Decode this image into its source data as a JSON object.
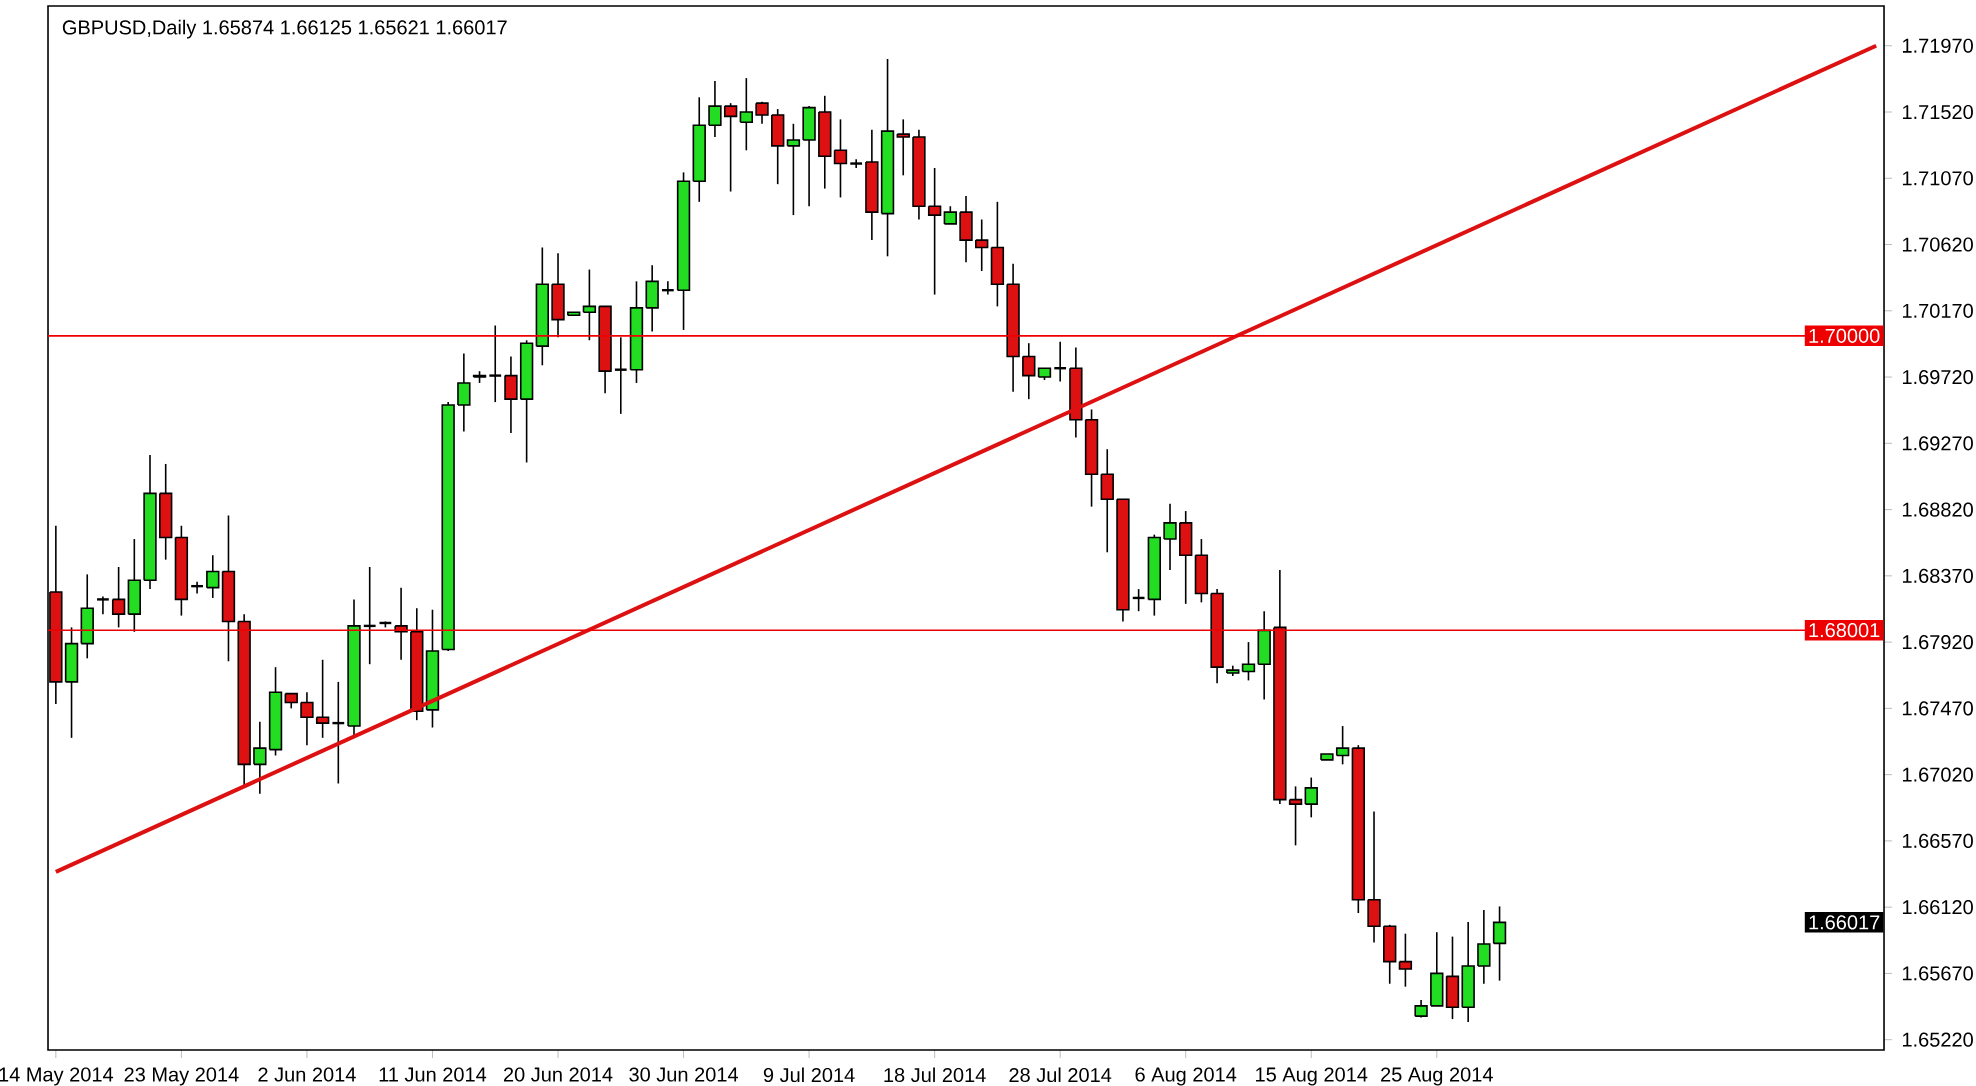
{
  "chart_data": {
    "type": "candlestick",
    "title": "GBPUSD,Daily 1.65874 1.66125 1.65621 1.66017",
    "categories": [
      "14 May 2014",
      null,
      null,
      null,
      null,
      null,
      null,
      null,
      "23 May 2014",
      null,
      null,
      null,
      null,
      null,
      null,
      null,
      "2 Jun 2014",
      null,
      null,
      null,
      null,
      null,
      null,
      null,
      "11 Jun 2014",
      null,
      null,
      null,
      null,
      null,
      null,
      null,
      "20 Jun 2014",
      null,
      null,
      null,
      null,
      null,
      null,
      null,
      "30 Jun 2014",
      null,
      null,
      null,
      null,
      null,
      null,
      null,
      "9 Jul 2014",
      null,
      null,
      null,
      null,
      null,
      null,
      null,
      "18 Jul 2014",
      null,
      null,
      null,
      null,
      null,
      null,
      null,
      "28 Jul 2014",
      null,
      null,
      null,
      null,
      null,
      null,
      null,
      "6 Aug 2014",
      null,
      null,
      null,
      null,
      null,
      null,
      null,
      "15 Aug 2014",
      null,
      null,
      null,
      null,
      null,
      null,
      null,
      "25 Aug 2014",
      null,
      null,
      null,
      null,
      null,
      null,
      null,
      null,
      null,
      null,
      null,
      null,
      null,
      null,
      null,
      null,
      null,
      null,
      null,
      null,
      null,
      null,
      null,
      null,
      null,
      null,
      null,
      null
    ],
    "ohlc": [
      [
        1.6826,
        1.6871,
        1.675,
        1.6765
      ],
      [
        1.6765,
        1.6802,
        1.6727,
        1.6791
      ],
      [
        1.6791,
        1.6838,
        1.6781,
        1.6815
      ],
      [
        1.6821,
        1.6823,
        1.6811,
        1.6821
      ],
      [
        1.6821,
        1.6843,
        1.6802,
        1.6811
      ],
      [
        1.6811,
        1.6862,
        1.6799,
        1.6834
      ],
      [
        1.6834,
        1.6919,
        1.6828,
        1.6893
      ],
      [
        1.6893,
        1.6913,
        1.6848,
        1.6863
      ],
      [
        1.6863,
        1.6871,
        1.681,
        1.6821
      ],
      [
        1.683,
        1.6833,
        1.6825,
        1.683
      ],
      [
        1.6829,
        1.6851,
        1.6822,
        1.684
      ],
      [
        1.684,
        1.6878,
        1.6779,
        1.6806
      ],
      [
        1.6806,
        1.6811,
        1.6694,
        1.6709
      ],
      [
        1.6709,
        1.6738,
        1.6689,
        1.672
      ],
      [
        1.6719,
        1.6775,
        1.6715,
        1.6758
      ],
      [
        1.6757,
        1.6757,
        1.6747,
        1.6751
      ],
      [
        1.6751,
        1.6758,
        1.6722,
        1.6741
      ],
      [
        1.6741,
        1.678,
        1.6727,
        1.6737
      ],
      [
        1.6737,
        1.6765,
        1.6696,
        1.6737
      ],
      [
        1.6735,
        1.6821,
        1.6728,
        1.6803
      ],
      [
        1.6803,
        1.6843,
        1.6777,
        1.6803
      ],
      [
        1.6805,
        1.6806,
        1.6802,
        1.6805
      ],
      [
        1.6803,
        1.6829,
        1.678,
        1.6799
      ],
      [
        1.6799,
        1.6815,
        1.6739,
        1.6745
      ],
      [
        1.6746,
        1.6814,
        1.6734,
        1.6786
      ],
      [
        1.6787,
        1.6955,
        1.6786,
        1.6953
      ],
      [
        1.6953,
        1.6988,
        1.6935,
        1.6968
      ],
      [
        1.6972,
        1.6976,
        1.6968,
        1.6973
      ],
      [
        1.6973,
        1.7007,
        1.6955,
        1.6973
      ],
      [
        1.6973,
        1.6986,
        1.6934,
        1.6957
      ],
      [
        1.6957,
        1.6997,
        1.6914,
        1.6995
      ],
      [
        1.6993,
        1.706,
        1.698,
        1.7035
      ],
      [
        1.7035,
        1.7056,
        1.6999,
        1.7011
      ],
      [
        1.7014,
        1.7016,
        1.7014,
        1.7016
      ],
      [
        1.7016,
        1.7045,
        1.6997,
        1.702
      ],
      [
        1.702,
        1.702,
        1.6961,
        1.6976
      ],
      [
        1.6977,
        1.6999,
        1.6947,
        1.6977
      ],
      [
        1.6977,
        1.7037,
        1.6968,
        1.7019
      ],
      [
        1.7019,
        1.7048,
        1.7003,
        1.7037
      ],
      [
        1.7031,
        1.7037,
        1.7028,
        1.7031
      ],
      [
        1.7031,
        1.7111,
        1.7004,
        1.7105
      ],
      [
        1.7105,
        1.7162,
        1.7091,
        1.7143
      ],
      [
        1.7143,
        1.7173,
        1.7135,
        1.7156
      ],
      [
        1.7156,
        1.7158,
        1.7098,
        1.7149
      ],
      [
        1.7145,
        1.7175,
        1.7126,
        1.7152
      ],
      [
        1.7158,
        1.7159,
        1.7144,
        1.715
      ],
      [
        1.715,
        1.7154,
        1.7103,
        1.7129
      ],
      [
        1.7129,
        1.7144,
        1.7082,
        1.7133
      ],
      [
        1.7133,
        1.7156,
        1.7088,
        1.7155
      ],
      [
        1.7152,
        1.7163,
        1.71,
        1.7122
      ],
      [
        1.7126,
        1.7147,
        1.7094,
        1.7117
      ],
      [
        1.7117,
        1.712,
        1.7114,
        1.7117
      ],
      [
        1.7118,
        1.714,
        1.7065,
        1.7084
      ],
      [
        1.7083,
        1.7188,
        1.7054,
        1.7139
      ],
      [
        1.7137,
        1.7147,
        1.7109,
        1.7135
      ],
      [
        1.7135,
        1.714,
        1.7079,
        1.7088
      ],
      [
        1.7088,
        1.7114,
        1.7028,
        1.7082
      ],
      [
        1.7076,
        1.7088,
        1.7076,
        1.7084
      ],
      [
        1.7084,
        1.7095,
        1.705,
        1.7065
      ],
      [
        1.7065,
        1.7079,
        1.7044,
        1.706
      ],
      [
        1.706,
        1.7091,
        1.702,
        1.7035
      ],
      [
        1.7035,
        1.7049,
        1.6962,
        1.6986
      ],
      [
        1.6986,
        1.6995,
        1.6957,
        1.6973
      ],
      [
        1.6972,
        1.6978,
        1.697,
        1.6978
      ],
      [
        1.6978,
        1.6996,
        1.6969,
        1.6978
      ],
      [
        1.6978,
        1.6992,
        1.6931,
        1.6943
      ],
      [
        1.6943,
        1.695,
        1.6884,
        1.6906
      ],
      [
        1.6906,
        1.6923,
        1.6853,
        1.6889
      ],
      [
        1.6889,
        1.6889,
        1.6806,
        1.6814
      ],
      [
        1.6822,
        1.6828,
        1.6813,
        1.6822
      ],
      [
        1.6821,
        1.6865,
        1.681,
        1.6863
      ],
      [
        1.6862,
        1.6886,
        1.6841,
        1.6873
      ],
      [
        1.6873,
        1.6881,
        1.6818,
        1.6851
      ],
      [
        1.6851,
        1.6862,
        1.6819,
        1.6825
      ],
      [
        1.6825,
        1.6828,
        1.6764,
        1.6775
      ],
      [
        1.6771,
        1.6776,
        1.6769,
        1.6773
      ],
      [
        1.6772,
        1.6792,
        1.6766,
        1.6777
      ],
      [
        1.6777,
        1.6813,
        1.6753,
        1.68
      ],
      [
        1.6802,
        1.6841,
        1.6682,
        1.6685
      ],
      [
        1.6685,
        1.6694,
        1.6654,
        1.6682
      ],
      [
        1.6682,
        1.67,
        1.6673,
        1.6693
      ],
      [
        1.6712,
        1.6716,
        1.6712,
        1.6716
      ],
      [
        1.6715,
        1.6735,
        1.6709,
        1.672
      ],
      [
        1.672,
        1.6722,
        1.6608,
        1.6617
      ],
      [
        1.6617,
        1.6677,
        1.6588,
        1.6599
      ],
      [
        1.6599,
        1.66,
        1.656,
        1.6575
      ],
      [
        1.6575,
        1.6594,
        1.6558,
        1.657
      ],
      [
        1.6538,
        1.6549,
        1.6537,
        1.6545
      ],
      [
        1.6545,
        1.6595,
        1.6545,
        1.6567
      ],
      [
        1.6565,
        1.6592,
        1.6536,
        1.6544
      ],
      [
        1.6544,
        1.6602,
        1.6534,
        1.6572
      ],
      [
        1.6572,
        1.661,
        1.656,
        1.6587
      ],
      [
        1.65874,
        1.66125,
        1.65621,
        1.66017
      ],
      null,
      null,
      null,
      null,
      null,
      null,
      null,
      null,
      null,
      null,
      null,
      null,
      null,
      null,
      null,
      null,
      null,
      null,
      null,
      null,
      null,
      null,
      null,
      null
    ],
    "colors": [
      "#dd1111",
      "#22dd22",
      "#22dd22",
      "#000000",
      "#dd1111",
      "#22dd22",
      "#22dd22",
      "#dd1111",
      "#dd1111",
      "#000000",
      "#22dd22",
      "#dd1111",
      "#dd1111",
      "#22dd22",
      "#22dd22",
      "#dd1111",
      "#dd1111",
      "#dd1111",
      "#000000",
      "#22dd22",
      "#000000",
      "#000000",
      "#dd1111",
      "#dd1111",
      "#22dd22",
      "#22dd22",
      "#22dd22",
      "#22dd22",
      "#000000",
      "#dd1111",
      "#22dd22",
      "#22dd22",
      "#dd1111",
      "#22dd22",
      "#22dd22",
      "#dd1111",
      "#000000",
      "#22dd22",
      "#22dd22",
      "#000000",
      "#22dd22",
      "#22dd22",
      "#22dd22",
      "#dd1111",
      "#22dd22",
      "#dd1111",
      "#dd1111",
      "#22dd22",
      "#22dd22",
      "#dd1111",
      "#dd1111",
      "#000000",
      "#dd1111",
      "#22dd22",
      "#dd1111",
      "#dd1111",
      "#dd1111",
      "#22dd22",
      "#dd1111",
      "#dd1111",
      "#dd1111",
      "#dd1111",
      "#dd1111",
      "#22dd22",
      "#000000",
      "#dd1111",
      "#dd1111",
      "#dd1111",
      "#dd1111",
      "#000000",
      "#22dd22",
      "#22dd22",
      "#dd1111",
      "#dd1111",
      "#dd1111",
      "#22dd22",
      "#22dd22",
      "#22dd22",
      "#dd1111",
      "#dd1111",
      "#22dd22",
      "#22dd22",
      "#22dd22",
      "#dd1111",
      "#dd1111",
      "#dd1111",
      "#dd1111",
      "#22dd22",
      "#22dd22",
      "#dd1111",
      "#22dd22",
      "#22dd22",
      "#22dd22",
      null,
      null,
      null,
      null,
      null,
      null,
      null,
      null,
      null,
      null,
      null,
      null,
      null,
      null,
      null,
      null,
      null,
      null,
      null,
      null,
      null,
      null,
      null,
      null
    ],
    "series": [
      {
        "type": "line",
        "values": [
          1.6636,
          null,
          null,
          null,
          null,
          null,
          null,
          null,
          null,
          null,
          null,
          null,
          null,
          null,
          null,
          null,
          null,
          null,
          null,
          null,
          null,
          null,
          null,
          null,
          null,
          null,
          null,
          null,
          null,
          null,
          null,
          null,
          null,
          null,
          null,
          null,
          null,
          null,
          null,
          null,
          null,
          null,
          null,
          null,
          null,
          null,
          null,
          null,
          null,
          null,
          null,
          null,
          null,
          null,
          null,
          null,
          null,
          null,
          null,
          null,
          null,
          null,
          null,
          null,
          null,
          null,
          null,
          null,
          null,
          null,
          null,
          null,
          null,
          null,
          null,
          null,
          null,
          null,
          null,
          null,
          null,
          null,
          null,
          null,
          null,
          null,
          null,
          null,
          null,
          null,
          null,
          null,
          null,
          null,
          null,
          null,
          null,
          null,
          null,
          null,
          null,
          null,
          null,
          null,
          null,
          null,
          null,
          null,
          null,
          null,
          null,
          null,
          null,
          null,
          null,
          null,
          1.7197
        ],
        "color": "#dd1111"
      }
    ],
    "ref_lines": [
      {
        "axis": "y",
        "value": 1.7,
        "label": "1.70000",
        "color": "#ee0000"
      },
      {
        "axis": "y",
        "value": 1.68001,
        "label": "1.68001",
        "color": "#ee0000"
      }
    ],
    "annotations": [
      "1.66017"
    ],
    "ylim": [
      1.6515,
      1.7224
    ],
    "yticks": [
      {
        "value": 1.6522,
        "label": "1.65220"
      },
      {
        "value": 1.6567,
        "label": "1.65670"
      },
      {
        "value": 1.6612,
        "label": "1.66120"
      },
      {
        "value": 1.6657,
        "label": "1.66570"
      },
      {
        "value": 1.6702,
        "label": "1.67020"
      },
      {
        "value": 1.6747,
        "label": "1.67470"
      },
      {
        "value": 1.6792,
        "label": "1.67920"
      },
      {
        "value": 1.6837,
        "label": "1.68370"
      },
      {
        "value": 1.6882,
        "label": "1.68820"
      },
      {
        "value": 1.6927,
        "label": "1.69270"
      },
      {
        "value": 1.6972,
        "label": "1.69720"
      },
      {
        "value": 1.7017,
        "label": "1.70170"
      },
      {
        "value": 1.7062,
        "label": "1.70620"
      },
      {
        "value": 1.7107,
        "label": "1.71070"
      },
      {
        "value": 1.7152,
        "label": "1.71520"
      },
      {
        "value": 1.7197,
        "label": "1.71970"
      }
    ],
    "grid": false
  }
}
